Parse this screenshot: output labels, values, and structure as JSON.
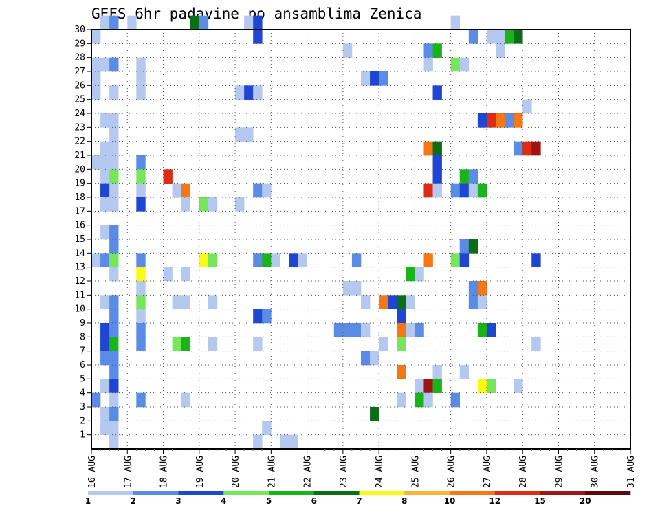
{
  "chart_data": {
    "type": "heatmap",
    "title": "GEFS 6hr padavine po ansamblima Zenica",
    "xlabel": "",
    "ylabel": "",
    "grid": true,
    "x_ticks": [
      "16 AUG",
      "17 AUG",
      "18 AUG",
      "19 AUG",
      "20 AUG",
      "21 AUG",
      "22 AUG",
      "23 AUG",
      "24 AUG",
      "25 AUG",
      "26 AUG",
      "27 AUG",
      "28 AUG",
      "29 AUG",
      "30 AUG",
      "31 AUG"
    ],
    "y_ticks": [
      "1",
      "2",
      "3",
      "4",
      "5",
      "6",
      "7",
      "8",
      "9",
      "10",
      "11",
      "12",
      "13",
      "14",
      "15",
      "16",
      "17",
      "18",
      "19",
      "20",
      "21",
      "22",
      "23",
      "24",
      "25",
      "26",
      "27",
      "28",
      "29",
      "30"
    ],
    "xlim": [
      "16 AUG 00Z",
      "31 AUG 00Z"
    ],
    "ylim": [
      0,
      30
    ],
    "time_step_hours": 6,
    "colorbar": {
      "labels": [
        "1",
        "2",
        "3",
        "4",
        "5",
        "6",
        "7",
        "8",
        "10",
        "12",
        "15",
        "20"
      ],
      "colors": [
        "#b4c8f0",
        "#5a8ce6",
        "#1e46d2",
        "#78e65a",
        "#19b419",
        "#0a6e14",
        "#fafa14",
        "#fab43c",
        "#f57814",
        "#dc2d14",
        "#a01414",
        "#5a0a0a"
      ]
    },
    "cells": [
      [
        30,
        1,
        1
      ],
      [
        30,
        2,
        2
      ],
      [
        30,
        4,
        1
      ],
      [
        30,
        11,
        6
      ],
      [
        30,
        12,
        2
      ],
      [
        30,
        17,
        1
      ],
      [
        30,
        18,
        3
      ],
      [
        30,
        40,
        1
      ],
      [
        29,
        0,
        1
      ],
      [
        29,
        18,
        3
      ],
      [
        29,
        42,
        2
      ],
      [
        29,
        44,
        1
      ],
      [
        29,
        45,
        1
      ],
      [
        29,
        46,
        5
      ],
      [
        29,
        47,
        6
      ],
      [
        28,
        28,
        1
      ],
      [
        28,
        37,
        2
      ],
      [
        28,
        38,
        5
      ],
      [
        28,
        45,
        1
      ],
      [
        27,
        0,
        1
      ],
      [
        27,
        1,
        1
      ],
      [
        27,
        2,
        2
      ],
      [
        27,
        5,
        1
      ],
      [
        27,
        37,
        1
      ],
      [
        27,
        40,
        4
      ],
      [
        27,
        41,
        1
      ],
      [
        26,
        0,
        1
      ],
      [
        26,
        5,
        1
      ],
      [
        26,
        30,
        1
      ],
      [
        26,
        31,
        3
      ],
      [
        26,
        32,
        2
      ],
      [
        25,
        0,
        1
      ],
      [
        25,
        2,
        1
      ],
      [
        25,
        5,
        1
      ],
      [
        25,
        16,
        1
      ],
      [
        25,
        17,
        3
      ],
      [
        25,
        18,
        1
      ],
      [
        25,
        38,
        3
      ],
      [
        24,
        48,
        1
      ],
      [
        23,
        1,
        1
      ],
      [
        23,
        2,
        1
      ],
      [
        23,
        43,
        3
      ],
      [
        23,
        44,
        10
      ],
      [
        23,
        45,
        9
      ],
      [
        23,
        46,
        2
      ],
      [
        23,
        47,
        9
      ],
      [
        22,
        2,
        1
      ],
      [
        22,
        16,
        1
      ],
      [
        22,
        17,
        1
      ],
      [
        21,
        1,
        1
      ],
      [
        21,
        2,
        1
      ],
      [
        21,
        37,
        9
      ],
      [
        21,
        38,
        6
      ],
      [
        21,
        47,
        2
      ],
      [
        21,
        48,
        10
      ],
      [
        21,
        49,
        11
      ],
      [
        20,
        0,
        1
      ],
      [
        20,
        1,
        1
      ],
      [
        20,
        2,
        1
      ],
      [
        20,
        5,
        2
      ],
      [
        20,
        38,
        3
      ],
      [
        19,
        1,
        1
      ],
      [
        19,
        2,
        4
      ],
      [
        19,
        5,
        4
      ],
      [
        19,
        8,
        10
      ],
      [
        19,
        38,
        3
      ],
      [
        19,
        41,
        5
      ],
      [
        19,
        42,
        2
      ],
      [
        18,
        1,
        3
      ],
      [
        18,
        2,
        1
      ],
      [
        18,
        5,
        1
      ],
      [
        18,
        9,
        1
      ],
      [
        18,
        10,
        9
      ],
      [
        18,
        18,
        2
      ],
      [
        18,
        19,
        1
      ],
      [
        18,
        37,
        10
      ],
      [
        18,
        38,
        1
      ],
      [
        18,
        40,
        2
      ],
      [
        18,
        41,
        3
      ],
      [
        18,
        42,
        1
      ],
      [
        18,
        43,
        5
      ],
      [
        17,
        1,
        1
      ],
      [
        17,
        2,
        1
      ],
      [
        17,
        5,
        3
      ],
      [
        17,
        10,
        1
      ],
      [
        17,
        12,
        4
      ],
      [
        17,
        13,
        1
      ],
      [
        17,
        16,
        1
      ],
      [
        15,
        1,
        1
      ],
      [
        15,
        2,
        2
      ],
      [
        14,
        2,
        2
      ],
      [
        14,
        41,
        2
      ],
      [
        14,
        42,
        6
      ],
      [
        13,
        0,
        1
      ],
      [
        13,
        1,
        2
      ],
      [
        13,
        2,
        4
      ],
      [
        13,
        5,
        2
      ],
      [
        13,
        12,
        7
      ],
      [
        13,
        13,
        4
      ],
      [
        13,
        18,
        2
      ],
      [
        13,
        19,
        5
      ],
      [
        13,
        20,
        1
      ],
      [
        13,
        22,
        3
      ],
      [
        13,
        23,
        1
      ],
      [
        13,
        29,
        2
      ],
      [
        13,
        37,
        9
      ],
      [
        13,
        40,
        4
      ],
      [
        13,
        41,
        3
      ],
      [
        13,
        49,
        3
      ],
      [
        12,
        2,
        1
      ],
      [
        12,
        5,
        7
      ],
      [
        12,
        8,
        1
      ],
      [
        12,
        10,
        1
      ],
      [
        12,
        35,
        5
      ],
      [
        12,
        36,
        1
      ],
      [
        11,
        5,
        1
      ],
      [
        11,
        28,
        1
      ],
      [
        11,
        29,
        1
      ],
      [
        11,
        42,
        2
      ],
      [
        11,
        43,
        9
      ],
      [
        10,
        1,
        1
      ],
      [
        10,
        2,
        2
      ],
      [
        10,
        5,
        4
      ],
      [
        10,
        9,
        1
      ],
      [
        10,
        10,
        1
      ],
      [
        10,
        13,
        1
      ],
      [
        10,
        30,
        1
      ],
      [
        10,
        32,
        9
      ],
      [
        10,
        33,
        3
      ],
      [
        10,
        34,
        6
      ],
      [
        10,
        35,
        1
      ],
      [
        10,
        42,
        2
      ],
      [
        10,
        43,
        1
      ],
      [
        9,
        2,
        2
      ],
      [
        9,
        5,
        1
      ],
      [
        9,
        18,
        3
      ],
      [
        9,
        19,
        2
      ],
      [
        9,
        34,
        3
      ],
      [
        8,
        1,
        3
      ],
      [
        8,
        2,
        2
      ],
      [
        8,
        5,
        2
      ],
      [
        8,
        27,
        2
      ],
      [
        8,
        28,
        2
      ],
      [
        8,
        29,
        2
      ],
      [
        8,
        30,
        1
      ],
      [
        8,
        34,
        9
      ],
      [
        8,
        35,
        1
      ],
      [
        8,
        36,
        2
      ],
      [
        8,
        43,
        5
      ],
      [
        8,
        44,
        3
      ],
      [
        7,
        1,
        3
      ],
      [
        7,
        2,
        5
      ],
      [
        7,
        5,
        2
      ],
      [
        7,
        9,
        4
      ],
      [
        7,
        10,
        5
      ],
      [
        7,
        13,
        1
      ],
      [
        7,
        18,
        1
      ],
      [
        7,
        32,
        1
      ],
      [
        7,
        34,
        4
      ],
      [
        7,
        49,
        1
      ],
      [
        6,
        1,
        2
      ],
      [
        6,
        2,
        2
      ],
      [
        6,
        30,
        2
      ],
      [
        6,
        31,
        1
      ],
      [
        5,
        2,
        2
      ],
      [
        5,
        34,
        9
      ],
      [
        5,
        38,
        1
      ],
      [
        5,
        41,
        1
      ],
      [
        4,
        1,
        1
      ],
      [
        4,
        2,
        3
      ],
      [
        4,
        36,
        1
      ],
      [
        4,
        37,
        11
      ],
      [
        4,
        38,
        5
      ],
      [
        4,
        43,
        7
      ],
      [
        4,
        44,
        4
      ],
      [
        4,
        47,
        1
      ],
      [
        3,
        0,
        2
      ],
      [
        3,
        2,
        1
      ],
      [
        3,
        5,
        2
      ],
      [
        3,
        10,
        1
      ],
      [
        3,
        34,
        1
      ],
      [
        3,
        36,
        5
      ],
      [
        3,
        37,
        1
      ],
      [
        3,
        40,
        2
      ],
      [
        2,
        1,
        1
      ],
      [
        2,
        2,
        2
      ],
      [
        2,
        31,
        6
      ],
      [
        1,
        1,
        1
      ],
      [
        1,
        2,
        1
      ],
      [
        1,
        19,
        1
      ],
      [
        0,
        2,
        1
      ],
      [
        0,
        18,
        1
      ],
      [
        0,
        21,
        1
      ],
      [
        0,
        22,
        1
      ]
    ]
  }
}
